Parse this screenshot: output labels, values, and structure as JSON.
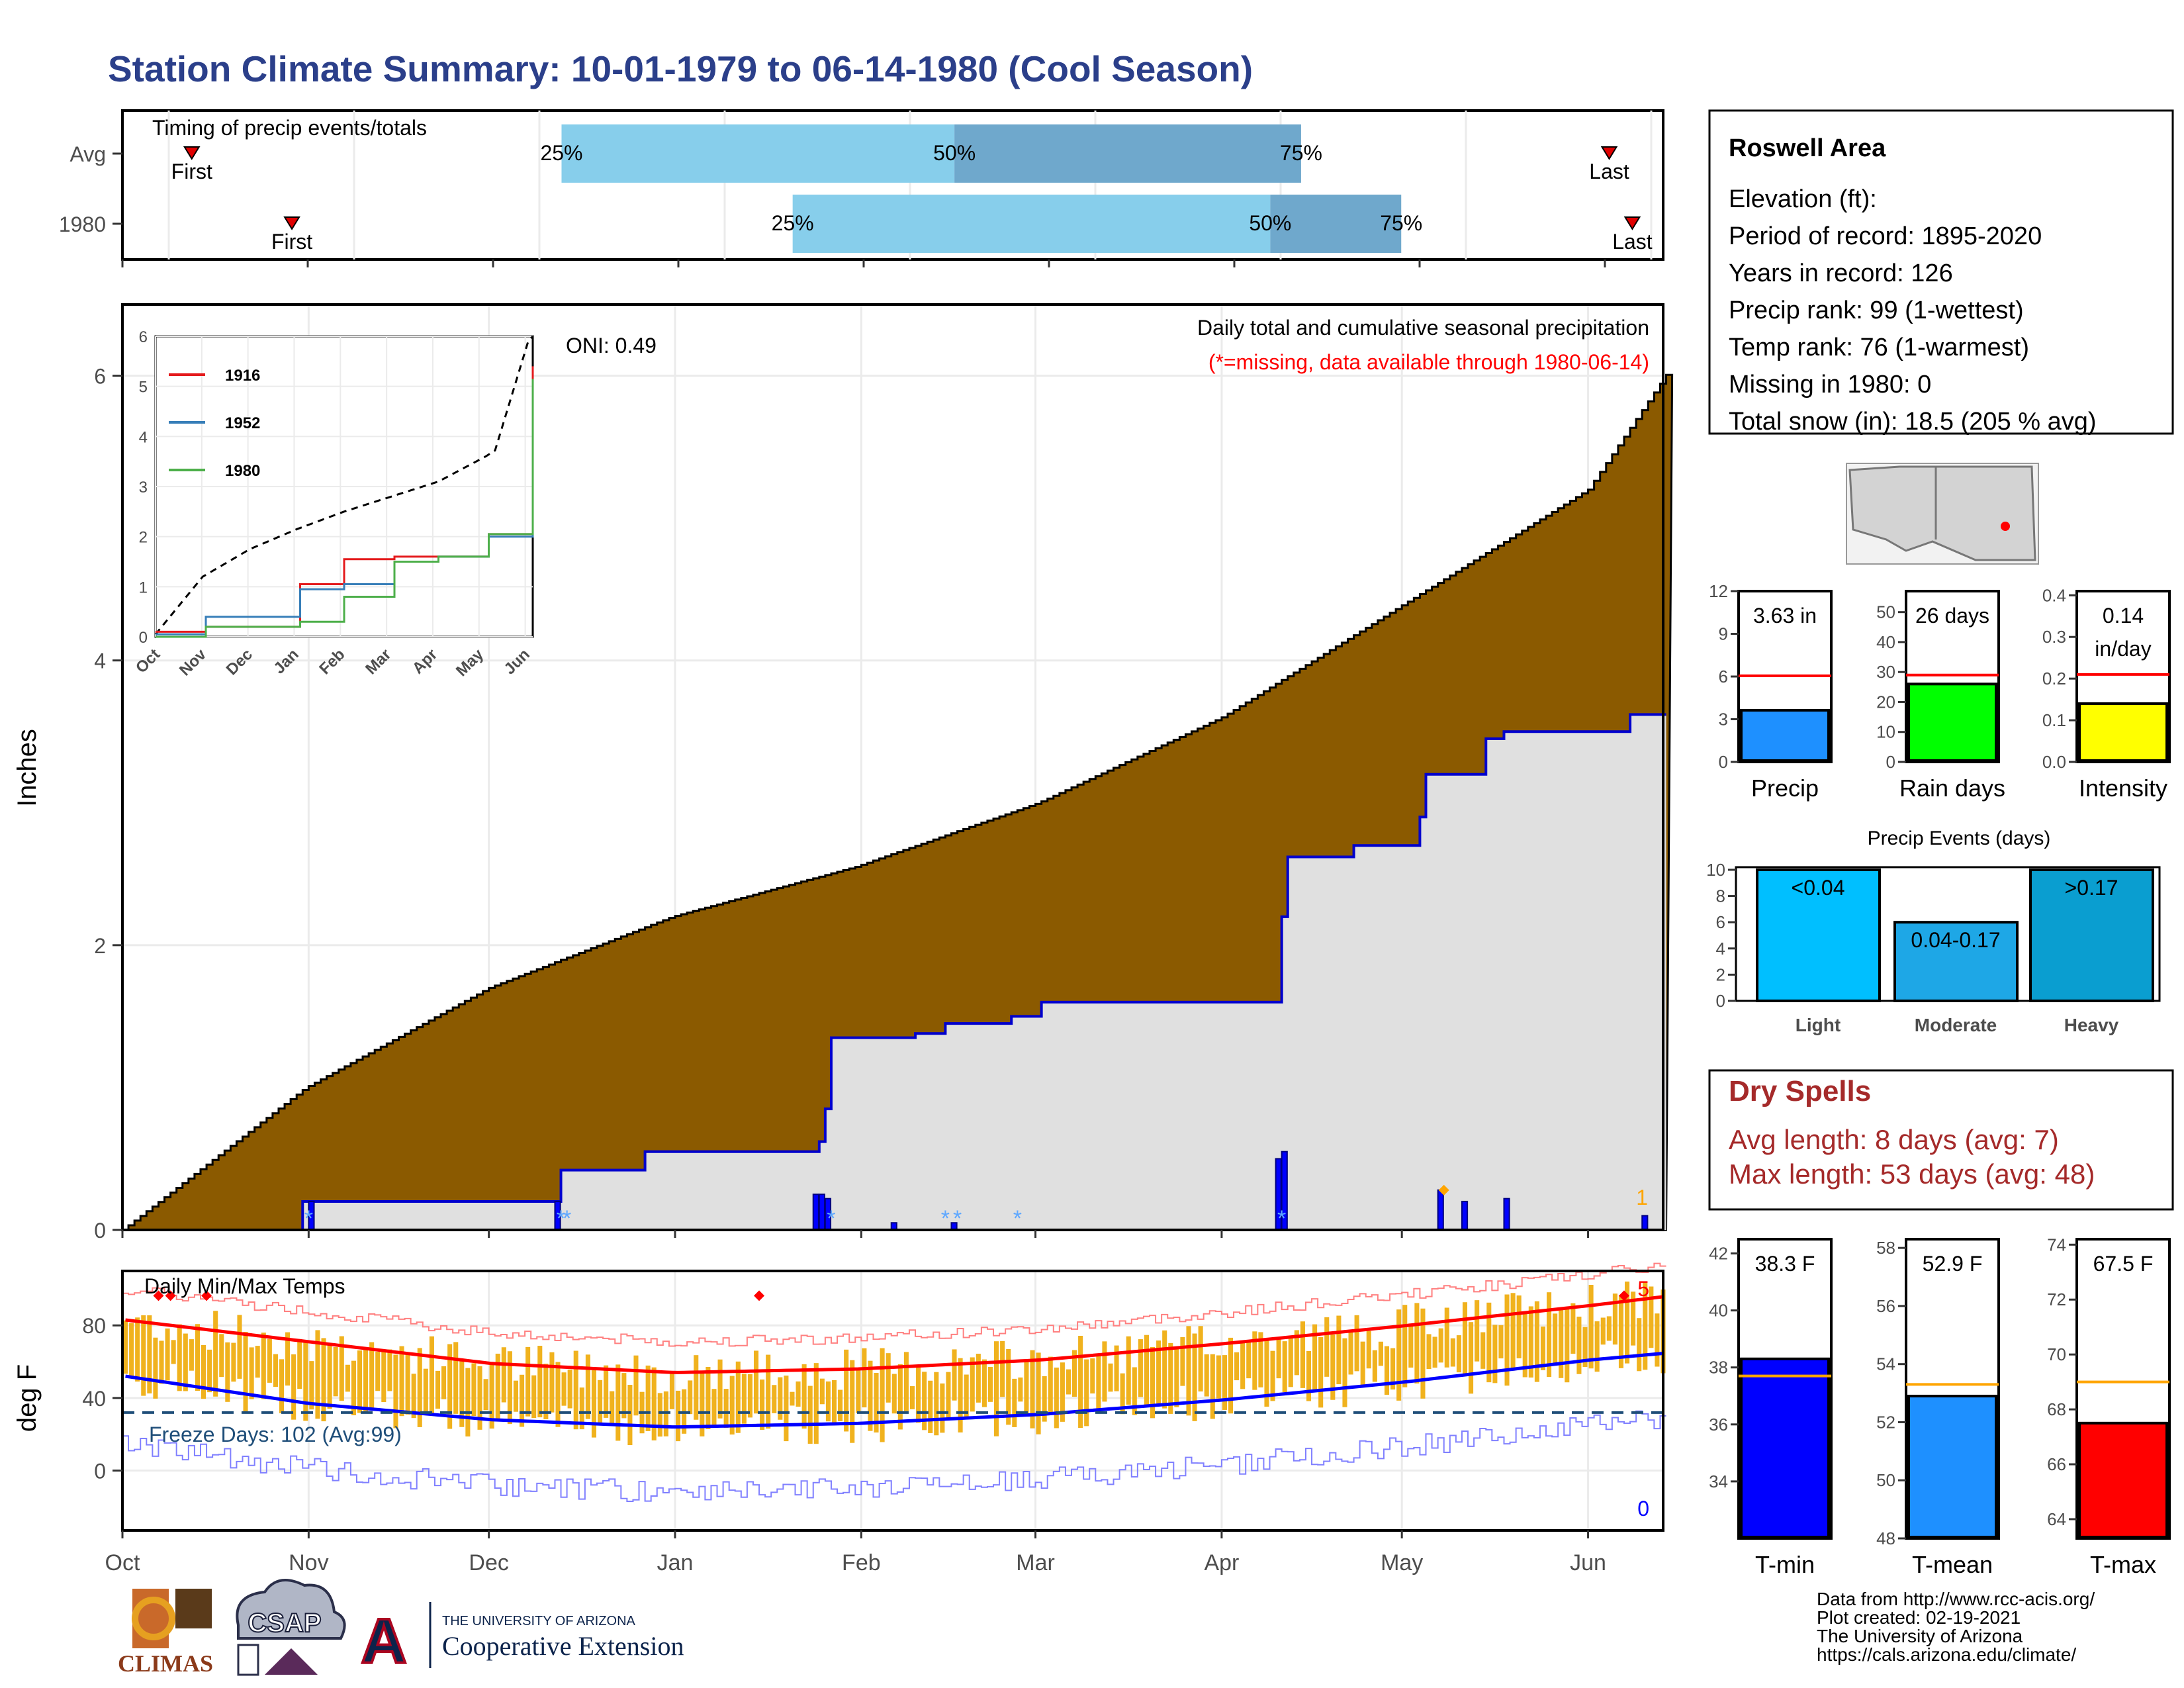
{
  "page": {
    "title": "Station Climate Summary: 10-01-1979 to 06-14-1980 (Cool Season)"
  },
  "colors": {
    "title": "#2b3f8a",
    "bar_light": "#87ceeb",
    "bar_dark": "#6fa8cc",
    "fill_station": "#8b5a00",
    "fill_year": "#e0e0e0",
    "cum_line": "#0000cd",
    "precip_bar": "#0000ff",
    "tmax": "#ff0000",
    "tmin": "#0000ff",
    "temp_bar": "#f0b21e",
    "dry_spell": "#a52a2a"
  },
  "timing": {
    "label": "Timing of precip events/totals",
    "row_labels": [
      "Avg",
      "1980"
    ],
    "p25": "25%",
    "p50": "50%",
    "p75": "75%",
    "first": "First",
    "last": "Last",
    "rows": [
      {
        "name": "Avg",
        "first": 0.045,
        "p25": 0.285,
        "p50": 0.54,
        "p75": 0.765,
        "last": 0.965
      },
      {
        "name": "1980",
        "first": 0.11,
        "p25": 0.435,
        "p50": 0.745,
        "p75": 0.83,
        "last": 0.98
      }
    ]
  },
  "precip": {
    "ylabel": "Inches",
    "title": "Daily total and cumulative seasonal precipitation",
    "missing_note": "(*=missing, data available through 1980-06-14)",
    "oni": "ONI: 0.49",
    "count_label": "1",
    "yticks": [
      "0",
      "2",
      "4",
      "6"
    ],
    "xticks": [
      "Oct",
      "Nov",
      "Dec",
      "Jan",
      "Feb",
      "Mar",
      "Apr",
      "May",
      "Jun"
    ]
  },
  "inset": {
    "yticks": [
      "0",
      "1",
      "2",
      "3",
      "4",
      "5",
      "6"
    ],
    "xticks": [
      "Oct",
      "Nov",
      "Dec",
      "Jan",
      "Feb",
      "Mar",
      "Apr",
      "May",
      "Jun"
    ],
    "legend": [
      {
        "name": "1916",
        "color": "#e41a1c"
      },
      {
        "name": "1952",
        "color": "#377eb8"
      },
      {
        "name": "1980",
        "color": "#4daf4a"
      }
    ]
  },
  "temps": {
    "ylabel": "deg F",
    "title": "Daily Min/Max Temps",
    "freeze": "Freeze Days: 102 (Avg:99)",
    "max_count": "5",
    "min_count": "0",
    "yticks": [
      "0",
      "40",
      "80"
    ]
  },
  "station": {
    "name": "Roswell Area",
    "lines": [
      "Elevation (ft):",
      "Period of record: 1895-2020",
      "Years in record: 126",
      "Precip rank: 99 (1-wettest)",
      "Temp rank: 76 (1-warmest)",
      "Missing in 1980: 0",
      "Total snow (in): 18.5 (205 % avg)"
    ]
  },
  "summary_bars": [
    {
      "label": "Precip",
      "value_text": "3.63 in",
      "value": 3.63,
      "avg": 6.05,
      "ymax": 12,
      "yticks": [
        "0",
        "3",
        "6",
        "9",
        "12"
      ],
      "color": "#1e90ff"
    },
    {
      "label": "Rain days",
      "value_text": "26 days",
      "value": 26,
      "avg": 29,
      "ymax": 57,
      "yticks": [
        "0",
        "10",
        "20",
        "30",
        "40",
        "50"
      ],
      "color": "#00ff00"
    },
    {
      "label": "Intensity",
      "value_text": "0.14",
      "value_text2": "in/day",
      "value": 0.14,
      "avg": 0.21,
      "ymax": 0.41,
      "yticks": [
        "0.0",
        "0.1",
        "0.2",
        "0.3",
        "0.4"
      ],
      "color": "#ffff00"
    }
  ],
  "events": {
    "title": "Precip Events (days)",
    "yticks": [
      "0",
      "2",
      "4",
      "6",
      "8",
      "10"
    ],
    "bars": [
      {
        "label": "Light",
        "text": "<0.04",
        "value": 10,
        "color": "#00bfff"
      },
      {
        "label": "Moderate",
        "text": "0.04-0.17",
        "value": 6,
        "color": "#1ea7e6"
      },
      {
        "label": "Heavy",
        "text": ">0.17",
        "value": 10,
        "color": "#0a9ed0"
      }
    ]
  },
  "dry_spells": {
    "title": "Dry Spells",
    "avg": "Avg length: 8 days (avg: 7)",
    "max": "Max length: 53 days (avg: 48)"
  },
  "temp_bars": [
    {
      "label": "T-min",
      "value_text": "38.3 F",
      "value": 38.3,
      "avg": 37.7,
      "ymin": 32,
      "ymax": 42.5,
      "yticks": [
        "34",
        "36",
        "38",
        "40",
        "42"
      ],
      "color": "#0000ff"
    },
    {
      "label": "T-mean",
      "value_text": "52.9 F",
      "value": 52.9,
      "avg": 53.3,
      "ymin": 48,
      "ymax": 58.3,
      "yticks": [
        "48",
        "50",
        "52",
        "54",
        "56",
        "58"
      ],
      "color": "#1e90ff"
    },
    {
      "label": "T-max",
      "value_text": "67.5 F",
      "value": 67.5,
      "avg": 69,
      "ymin": 63.3,
      "ymax": 74.2,
      "yticks": [
        "64",
        "66",
        "68",
        "70",
        "72",
        "74"
      ],
      "color": "#ff0000"
    }
  ],
  "logos": {
    "climas": "CLIMAS",
    "csap": "CSAP",
    "ua_top": "THE UNIVERSITY OF ARIZONA",
    "ua_bottom": "Cooperative Extension"
  },
  "credits": [
    "Data from http://www.rcc-acis.org/",
    "Plot created: 02-19-2021",
    "The University of Arizona",
    "https://cals.arizona.edu/climate/"
  ],
  "chart_data": [
    {
      "type": "area",
      "title": "Daily total and cumulative seasonal precipitation",
      "ylabel": "Inches",
      "x": [
        "Oct",
        "Nov",
        "Dec",
        "Jan",
        "Feb",
        "Mar",
        "Apr",
        "May",
        "Jun"
      ],
      "ylim": [
        0,
        6.5
      ],
      "series": [
        {
          "name": "",
          "values": [
            0,
            1.0,
            1.7,
            2.2,
            2.55,
            3.0,
            3.6,
            4.4,
            5.2
          ]
        },
        {
          "name": "",
          "values": [
            0,
            0.2,
            0.2,
            0.55,
            1.35,
            1.6,
            1.6,
            3.05,
            3.5
          ]
        }
      ],
      "daily_events": [
        {
          "date": "Nov 01",
          "value": 0.2
        },
        {
          "date": "Dec 12",
          "value": 0.2
        },
        {
          "date": "Jan 24",
          "value": 0.25
        },
        {
          "date": "Jan 25",
          "value": 0.25
        },
        {
          "date": "Jan 26",
          "value": 0.22
        },
        {
          "date": "Feb 06",
          "value": 0.05
        },
        {
          "date": "Feb 16",
          "value": 0.05
        },
        {
          "date": "Apr 10",
          "value": 0.5
        },
        {
          "date": "Apr 11",
          "value": 0.55
        },
        {
          "date": "May 07",
          "value": 0.28
        },
        {
          "date": "May 11",
          "value": 0.2
        },
        {
          "date": "May 18",
          "value": 0.22
        },
        {
          "date": "Jun 10",
          "value": 0.1
        }
      ]
    },
    {
      "type": "line",
      "title": "",
      "x": [
        "Oct",
        "Nov",
        "Dec",
        "Jan",
        "Feb",
        "Mar",
        "Apr",
        "May",
        "Jun"
      ],
      "ylim": [
        0,
        6
      ],
      "series": [
        {
          "name": "",
          "values": [
            0.05,
            1.2,
            1.75,
            2.15,
            2.5,
            2.8,
            3.1,
            3.6,
            4.2
          ]
        },
        {
          "name": "1916",
          "values": [
            0.1,
            0.2,
            0.2,
            1.05,
            1.55,
            1.6,
            1.6,
            2.05,
            5.4
          ]
        },
        {
          "name": "1952",
          "values": [
            0.05,
            0.4,
            0.4,
            0.95,
            1.05,
            1.5,
            1.6,
            2.0,
            5.05
          ]
        },
        {
          "name": "1980",
          "values": [
            0.0,
            0.2,
            0.2,
            0.3,
            0.8,
            1.5,
            1.6,
            2.05,
            5.15
          ]
        }
      ]
    },
    {
      "type": "line",
      "title": "Daily Min/Max Temps",
      "ylabel": "deg F",
      "x": [
        "Oct",
        "Nov",
        "Dec",
        "Jan",
        "Feb",
        "Mar",
        "Apr",
        "May",
        "Jun"
      ],
      "ylim": [
        -30,
        110
      ],
      "series": [
        {
          "name": "",
          "values": [
            83,
            71,
            59,
            54,
            56,
            61,
            70,
            80,
            91
          ]
        },
        {
          "name": "",
          "values": [
            52,
            37,
            28,
            24,
            26,
            31,
            39,
            49,
            61
          ]
        }
      ],
      "freeze_line": 32
    },
    {
      "type": "bar",
      "categories": [
        "Precip",
        "Rain days",
        "Intensity"
      ],
      "series": [
        {
          "name": "",
          "values": [
            3.63,
            26,
            0.14
          ]
        },
        {
          "name": "",
          "values": [
            6.05,
            29,
            0.21
          ]
        }
      ]
    },
    {
      "type": "bar",
      "title": "Precip Events (days)",
      "categories": [
        "Light",
        "Moderate",
        "Heavy"
      ],
      "values": [
        10,
        6,
        10
      ],
      "ylim": [
        0,
        10
      ]
    },
    {
      "type": "bar",
      "categories": [
        "T-min",
        "T-mean",
        "T-max"
      ],
      "series": [
        {
          "name": "",
          "values": [
            38.3,
            52.9,
            67.5
          ]
        },
        {
          "name": "",
          "values": [
            37.7,
            53.3,
            69
          ]
        }
      ]
    }
  ]
}
